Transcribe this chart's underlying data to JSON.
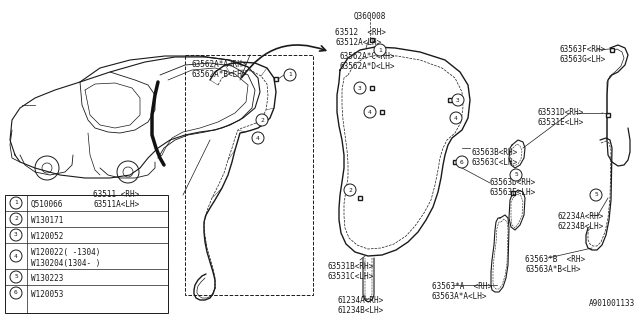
{
  "bg_color": "#ffffff",
  "line_color": "#1a1a1a",
  "text_color": "#1a1a1a",
  "fig_width": 6.4,
  "fig_height": 3.2,
  "dpi": 100,
  "part_number_top": "Q360008",
  "footer_text": "A901001133",
  "legend_items": [
    {
      "num": "1",
      "part": "Q510066"
    },
    {
      "num": "2",
      "part": "W130171"
    },
    {
      "num": "3",
      "part": "W120052"
    },
    {
      "num": "4a",
      "part": "W120022( -1304)"
    },
    {
      "num": "4b",
      "part": "W130204(1304- )"
    },
    {
      "num": "5",
      "part": "W130223"
    },
    {
      "num": "6",
      "part": "W120053"
    }
  ]
}
